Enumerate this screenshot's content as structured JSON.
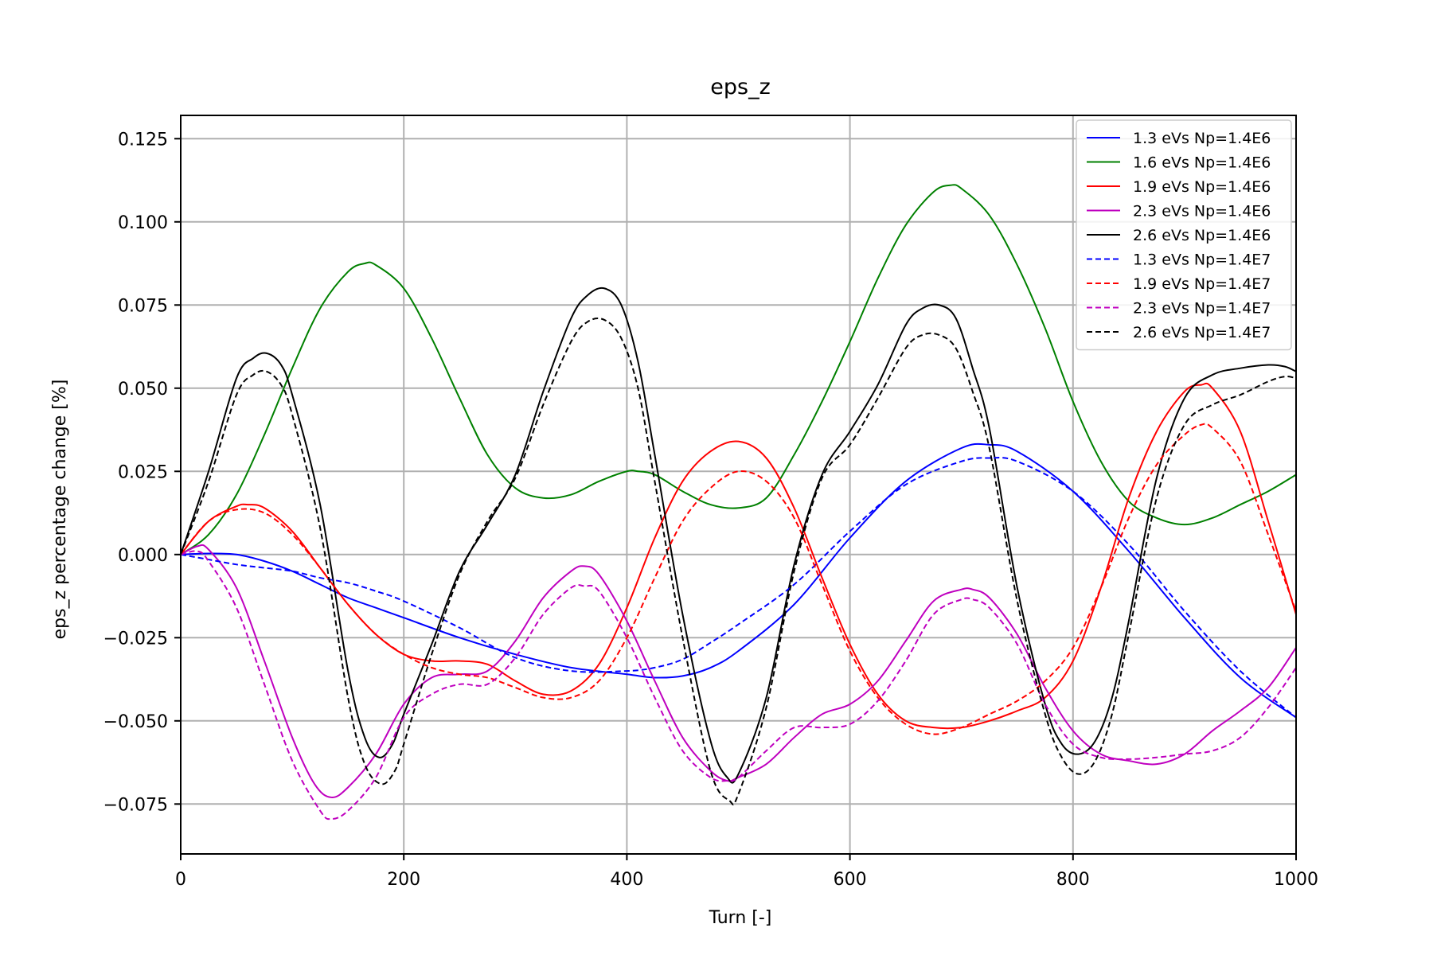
{
  "chart_data": {
    "type": "line",
    "title": "eps_z",
    "xlabel": "Turn [-]",
    "ylabel": "eps_z percentage change [%]",
    "xlim": [
      0,
      1000
    ],
    "ylim": [
      -0.09,
      0.132
    ],
    "xticks": [
      0,
      200,
      400,
      600,
      800,
      1000
    ],
    "xtick_labels": [
      "0",
      "200",
      "400",
      "600",
      "800",
      "1000"
    ],
    "yticks": [
      -0.075,
      -0.05,
      -0.025,
      0.0,
      0.025,
      0.05,
      0.075,
      0.1,
      0.125
    ],
    "ytick_labels": [
      "−0.075",
      "−0.050",
      "−0.025",
      "0.000",
      "0.025",
      "0.050",
      "0.075",
      "0.100",
      "0.125"
    ],
    "grid": true,
    "legend_position": "top-right",
    "series": [
      {
        "name": "1.3 eVs Np=1.4E6",
        "color": "#0000ff",
        "dash": "solid",
        "x": [
          0,
          25,
          50,
          75,
          100,
          125,
          150,
          175,
          200,
          250,
          300,
          350,
          400,
          425,
          450,
          475,
          500,
          550,
          600,
          650,
          700,
          725,
          750,
          800,
          850,
          900,
          950,
          1000
        ],
        "y": [
          0.0,
          0.0003,
          0.0,
          -0.002,
          -0.005,
          -0.009,
          -0.013,
          -0.016,
          -0.019,
          -0.025,
          -0.03,
          -0.034,
          -0.036,
          -0.037,
          -0.0365,
          -0.034,
          -0.029,
          -0.015,
          0.005,
          0.022,
          0.032,
          0.033,
          0.031,
          0.019,
          0.001,
          -0.019,
          -0.037,
          -0.049
        ]
      },
      {
        "name": "1.6 eVs Np=1.4E6",
        "color": "#008000",
        "dash": "solid",
        "x": [
          0,
          25,
          50,
          75,
          100,
          125,
          150,
          165,
          175,
          200,
          225,
          250,
          275,
          300,
          325,
          350,
          375,
          400,
          410,
          425,
          450,
          475,
          500,
          525,
          550,
          575,
          600,
          625,
          650,
          675,
          690,
          700,
          725,
          750,
          775,
          800,
          825,
          850,
          875,
          900,
          925,
          950,
          975,
          1000
        ],
        "y": [
          0.0,
          0.006,
          0.018,
          0.036,
          0.056,
          0.074,
          0.085,
          0.0875,
          0.087,
          0.08,
          0.065,
          0.047,
          0.03,
          0.02,
          0.017,
          0.018,
          0.022,
          0.025,
          0.025,
          0.024,
          0.019,
          0.015,
          0.014,
          0.017,
          0.03,
          0.046,
          0.064,
          0.083,
          0.099,
          0.109,
          0.111,
          0.11,
          0.102,
          0.087,
          0.068,
          0.046,
          0.028,
          0.016,
          0.011,
          0.009,
          0.011,
          0.015,
          0.019,
          0.024
        ]
      },
      {
        "name": "1.9 eVs Np=1.4E6",
        "color": "#ff0000",
        "dash": "solid",
        "x": [
          0,
          25,
          50,
          60,
          75,
          100,
          125,
          150,
          175,
          200,
          225,
          250,
          275,
          300,
          325,
          350,
          375,
          400,
          425,
          450,
          475,
          500,
          525,
          550,
          575,
          600,
          625,
          650,
          675,
          700,
          725,
          750,
          775,
          800,
          825,
          850,
          875,
          900,
          915,
          925,
          950,
          975,
          1000
        ],
        "y": [
          0.0,
          0.01,
          0.0145,
          0.015,
          0.014,
          0.007,
          -0.004,
          -0.015,
          -0.024,
          -0.03,
          -0.032,
          -0.032,
          -0.033,
          -0.038,
          -0.042,
          -0.041,
          -0.033,
          -0.016,
          0.005,
          0.022,
          0.031,
          0.034,
          0.029,
          0.014,
          -0.007,
          -0.027,
          -0.042,
          -0.05,
          -0.052,
          -0.052,
          -0.05,
          -0.047,
          -0.043,
          -0.032,
          -0.01,
          0.017,
          0.037,
          0.049,
          0.051,
          0.05,
          0.037,
          0.01,
          -0.018
        ]
      },
      {
        "name": "2.3 eVs Np=1.4E6",
        "color": "#bf00bf",
        "dash": "solid",
        "x": [
          0,
          15,
          25,
          50,
          75,
          100,
          120,
          135,
          150,
          175,
          200,
          225,
          250,
          275,
          300,
          325,
          350,
          362,
          375,
          400,
          425,
          450,
          475,
          490,
          500,
          525,
          550,
          575,
          600,
          625,
          650,
          675,
          700,
          710,
          725,
          750,
          775,
          800,
          825,
          850,
          875,
          900,
          925,
          950,
          975,
          1000
        ],
        "y": [
          0.0,
          0.0025,
          0.0015,
          -0.01,
          -0.032,
          -0.055,
          -0.069,
          -0.073,
          -0.07,
          -0.06,
          -0.045,
          -0.037,
          -0.036,
          -0.035,
          -0.026,
          -0.013,
          -0.005,
          -0.0035,
          -0.006,
          -0.02,
          -0.038,
          -0.055,
          -0.065,
          -0.068,
          -0.067,
          -0.063,
          -0.055,
          -0.048,
          -0.045,
          -0.038,
          -0.026,
          -0.014,
          -0.0105,
          -0.0105,
          -0.013,
          -0.024,
          -0.04,
          -0.053,
          -0.06,
          -0.062,
          -0.063,
          -0.06,
          -0.053,
          -0.047,
          -0.04,
          -0.028
        ]
      },
      {
        "name": "2.6 eVs Np=1.4E6",
        "color": "#000000",
        "dash": "solid",
        "x": [
          0,
          25,
          50,
          65,
          77,
          90,
          100,
          125,
          150,
          165,
          178,
          190,
          200,
          225,
          250,
          275,
          300,
          325,
          350,
          365,
          380,
          395,
          410,
          425,
          450,
          475,
          490,
          500,
          525,
          550,
          575,
          600,
          625,
          650,
          665,
          680,
          695,
          710,
          725,
          750,
          775,
          790,
          805,
          820,
          835,
          850,
          875,
          900,
          925,
          950,
          975,
          990,
          1000
        ],
        "y": [
          0.0,
          0.025,
          0.053,
          0.059,
          0.0605,
          0.057,
          0.048,
          0.015,
          -0.035,
          -0.055,
          -0.061,
          -0.057,
          -0.048,
          -0.027,
          -0.005,
          0.009,
          0.024,
          0.049,
          0.071,
          0.078,
          0.08,
          0.075,
          0.058,
          0.03,
          -0.018,
          -0.056,
          -0.067,
          -0.066,
          -0.043,
          -0.003,
          0.024,
          0.037,
          0.051,
          0.069,
          0.074,
          0.075,
          0.071,
          0.056,
          0.038,
          -0.01,
          -0.045,
          -0.057,
          -0.06,
          -0.056,
          -0.043,
          -0.02,
          0.023,
          0.047,
          0.054,
          0.056,
          0.057,
          0.0565,
          0.055
        ]
      },
      {
        "name": "1.3 eVs Np=1.4E7",
        "color": "#0000ff",
        "dash": "dashed",
        "x": [
          0,
          25,
          50,
          75,
          100,
          125,
          150,
          175,
          200,
          250,
          300,
          350,
          400,
          425,
          450,
          475,
          500,
          550,
          600,
          650,
          700,
          725,
          750,
          800,
          850,
          900,
          950,
          1000
        ],
        "y": [
          0.0,
          -0.0015,
          -0.003,
          -0.004,
          -0.005,
          -0.007,
          -0.0085,
          -0.011,
          -0.014,
          -0.022,
          -0.031,
          -0.035,
          -0.035,
          -0.034,
          -0.0315,
          -0.0265,
          -0.021,
          -0.009,
          0.007,
          0.021,
          0.028,
          0.029,
          0.028,
          0.019,
          0.003,
          -0.017,
          -0.035,
          -0.049
        ]
      },
      {
        "name": "1.9 eVs Np=1.4E7",
        "color": "#ff0000",
        "dash": "dashed",
        "x": [
          0,
          25,
          50,
          75,
          100,
          125,
          150,
          175,
          200,
          225,
          250,
          275,
          300,
          325,
          350,
          375,
          400,
          425,
          450,
          475,
          500,
          525,
          550,
          575,
          600,
          625,
          650,
          675,
          700,
          725,
          750,
          775,
          800,
          825,
          850,
          875,
          900,
          915,
          925,
          950,
          975,
          1000
        ],
        "y": [
          0.0,
          0.01,
          0.0135,
          0.0125,
          0.006,
          -0.004,
          -0.015,
          -0.024,
          -0.03,
          -0.034,
          -0.036,
          -0.037,
          -0.04,
          -0.043,
          -0.043,
          -0.038,
          -0.025,
          -0.007,
          0.01,
          0.02,
          0.025,
          0.022,
          0.011,
          -0.009,
          -0.029,
          -0.043,
          -0.051,
          -0.054,
          -0.052,
          -0.048,
          -0.044,
          -0.038,
          -0.028,
          -0.01,
          0.011,
          0.027,
          0.036,
          0.039,
          0.038,
          0.028,
          0.006,
          -0.017
        ]
      },
      {
        "name": "2.3 eVs Np=1.4E7",
        "color": "#bf00bf",
        "dash": "dashed",
        "x": [
          0,
          15,
          25,
          50,
          75,
          100,
          125,
          135,
          150,
          175,
          200,
          225,
          250,
          275,
          300,
          325,
          350,
          362,
          375,
          400,
          425,
          450,
          475,
          490,
          500,
          525,
          550,
          575,
          600,
          625,
          650,
          675,
          700,
          710,
          725,
          750,
          775,
          800,
          825,
          850,
          875,
          900,
          925,
          950,
          975,
          1000
        ],
        "y": [
          0.0,
          0.001,
          -0.002,
          -0.016,
          -0.039,
          -0.062,
          -0.077,
          -0.0795,
          -0.077,
          -0.067,
          -0.049,
          -0.042,
          -0.039,
          -0.039,
          -0.031,
          -0.018,
          -0.01,
          -0.0095,
          -0.011,
          -0.025,
          -0.043,
          -0.059,
          -0.067,
          -0.068,
          -0.067,
          -0.059,
          -0.052,
          -0.052,
          -0.051,
          -0.044,
          -0.032,
          -0.018,
          -0.0135,
          -0.0135,
          -0.016,
          -0.027,
          -0.045,
          -0.057,
          -0.061,
          -0.0615,
          -0.061,
          -0.06,
          -0.059,
          -0.055,
          -0.046,
          -0.034
        ]
      },
      {
        "name": "2.6 eVs Np=1.4E7",
        "color": "#000000",
        "dash": "dashed",
        "x": [
          0,
          25,
          50,
          65,
          77,
          90,
          100,
          125,
          150,
          165,
          180,
          192,
          200,
          225,
          250,
          275,
          300,
          325,
          350,
          365,
          380,
          395,
          410,
          425,
          450,
          475,
          492,
          500,
          525,
          550,
          575,
          600,
          625,
          650,
          665,
          680,
          695,
          710,
          725,
          750,
          775,
          790,
          805,
          820,
          835,
          850,
          875,
          900,
          925,
          950,
          975,
          990,
          1000
        ],
        "y": [
          0.0,
          0.022,
          0.048,
          0.054,
          0.055,
          0.051,
          0.042,
          0.008,
          -0.043,
          -0.063,
          -0.069,
          -0.065,
          -0.057,
          -0.03,
          -0.006,
          0.01,
          0.023,
          0.045,
          0.064,
          0.07,
          0.0705,
          0.065,
          0.05,
          0.022,
          -0.025,
          -0.065,
          -0.074,
          -0.072,
          -0.046,
          -0.005,
          0.023,
          0.033,
          0.047,
          0.062,
          0.066,
          0.066,
          0.062,
          0.049,
          0.032,
          -0.014,
          -0.048,
          -0.061,
          -0.066,
          -0.062,
          -0.048,
          -0.024,
          0.017,
          0.039,
          0.045,
          0.048,
          0.052,
          0.0535,
          0.053
        ]
      }
    ]
  }
}
